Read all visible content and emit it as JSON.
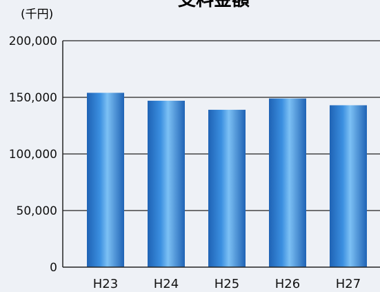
{
  "chart_data": {
    "type": "bar",
    "title": "支料金額",
    "unit_label": "(千円)",
    "categories": [
      "H23",
      "H24",
      "H25",
      "H26",
      "H27"
    ],
    "values": [
      154000,
      147000,
      139000,
      149000,
      143000
    ],
    "yticks": [
      "0",
      "50,000",
      "100,000",
      "150,000",
      "200,000"
    ],
    "ylim": [
      0,
      200000
    ],
    "grid": true,
    "colors": {
      "bar_dark": "#1f63b5",
      "bar_mid": "#3b8fe0",
      "bar_light": "#7cc0f4",
      "axis": "#222222",
      "grid": "#222222",
      "background": "#eef1f6",
      "text": "#111111"
    }
  }
}
